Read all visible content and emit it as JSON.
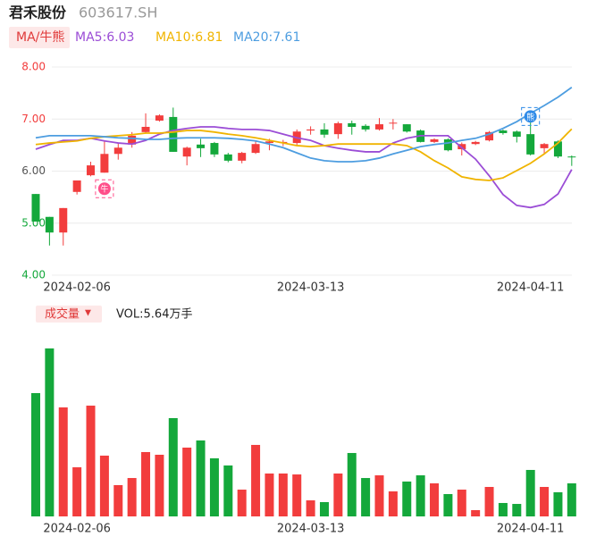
{
  "header": {
    "title": "君禾股份",
    "code": "603617.SH"
  },
  "chart_data": {
    "type": "candlestick",
    "indicator_button": "MA/牛熊",
    "categories": [
      null,
      null,
      null,
      "2024-02-06",
      null,
      null,
      null,
      null,
      null,
      null,
      null,
      null,
      null,
      null,
      null,
      null,
      null,
      null,
      null,
      null,
      "2024-03-13",
      null,
      null,
      null,
      null,
      null,
      null,
      null,
      null,
      null,
      null,
      null,
      null,
      null,
      null,
      null,
      "2024-04-11",
      null,
      null,
      null
    ],
    "up_color": "#f23d3d",
    "down_color": "#14a83b",
    "open": [
      5.56,
      5.12,
      4.82,
      5.6,
      5.92,
      5.97,
      6.33,
      6.51,
      6.75,
      6.97,
      7.04,
      6.28,
      6.51,
      6.54,
      6.32,
      6.2,
      6.35,
      6.54,
      6.54,
      6.54,
      6.78,
      6.8,
      6.71,
      6.92,
      6.87,
      6.8,
      6.92,
      6.9,
      6.78,
      6.56,
      6.61,
      6.42,
      6.52,
      6.59,
      6.78,
      6.76,
      6.71,
      6.44,
      6.57,
      6.28
    ],
    "high": [
      5.56,
      5.12,
      5.29,
      5.82,
      6.18,
      6.58,
      6.55,
      6.75,
      7.11,
      7.09,
      7.22,
      6.47,
      6.62,
      6.56,
      6.35,
      6.37,
      6.59,
      6.62,
      6.6,
      6.8,
      6.86,
      6.92,
      6.95,
      6.97,
      6.9,
      7.02,
      7.0,
      6.9,
      6.8,
      6.63,
      6.63,
      6.55,
      6.58,
      6.77,
      6.8,
      6.78,
      7.05,
      6.54,
      6.59,
      6.3
    ],
    "low": [
      5.03,
      4.57,
      4.57,
      5.55,
      5.9,
      5.97,
      6.22,
      6.45,
      6.72,
      6.95,
      6.37,
      6.11,
      6.27,
      6.27,
      6.17,
      6.15,
      6.33,
      6.4,
      6.48,
      6.5,
      6.7,
      6.64,
      6.62,
      6.7,
      6.76,
      6.78,
      6.8,
      6.74,
      6.55,
      6.54,
      6.38,
      6.3,
      6.5,
      6.57,
      6.7,
      6.55,
      6.3,
      6.33,
      6.25,
      6.1
    ],
    "close": [
      5.03,
      4.82,
      5.29,
      5.82,
      6.11,
      6.33,
      6.45,
      6.68,
      6.85,
      7.07,
      6.37,
      6.45,
      6.44,
      6.32,
      6.2,
      6.35,
      6.52,
      6.57,
      6.56,
      6.76,
      6.8,
      6.7,
      6.92,
      6.85,
      6.8,
      6.9,
      6.93,
      6.76,
      6.56,
      6.61,
      6.4,
      6.52,
      6.56,
      6.75,
      6.73,
      6.66,
      6.32,
      6.52,
      6.28,
      6.27
    ],
    "series": [
      {
        "name": "MA5",
        "label": "MA5:6.03",
        "color": "#9b4dd6",
        "values": [
          6.42,
          6.51,
          6.59,
          6.59,
          6.63,
          6.58,
          6.54,
          6.52,
          6.59,
          6.71,
          6.78,
          6.82,
          6.85,
          6.85,
          6.82,
          6.8,
          6.8,
          6.78,
          6.71,
          6.64,
          6.59,
          6.49,
          6.44,
          6.4,
          6.37,
          6.37,
          6.54,
          6.63,
          6.68,
          6.68,
          6.68,
          6.45,
          6.23,
          5.91,
          5.55,
          5.34,
          5.3,
          5.36,
          5.56,
          6.03
        ]
      },
      {
        "name": "MA10",
        "label": "MA10:6.81",
        "color": "#f0b400",
        "values": [
          6.51,
          6.54,
          6.56,
          6.58,
          6.63,
          6.66,
          6.68,
          6.7,
          6.73,
          6.73,
          6.75,
          6.78,
          6.78,
          6.75,
          6.71,
          6.68,
          6.64,
          6.59,
          6.54,
          6.49,
          6.47,
          6.49,
          6.52,
          6.52,
          6.52,
          6.52,
          6.52,
          6.49,
          6.37,
          6.2,
          6.06,
          5.89,
          5.84,
          5.82,
          5.87,
          6.01,
          6.15,
          6.33,
          6.54,
          6.81
        ]
      },
      {
        "name": "MA20",
        "label": "MA20:7.61",
        "color": "#4d9de0",
        "values": [
          6.64,
          6.68,
          6.68,
          6.68,
          6.68,
          6.66,
          6.64,
          6.63,
          6.61,
          6.61,
          6.63,
          6.64,
          6.64,
          6.64,
          6.63,
          6.61,
          6.58,
          6.52,
          6.45,
          6.35,
          6.25,
          6.2,
          6.18,
          6.18,
          6.2,
          6.25,
          6.33,
          6.4,
          6.47,
          6.51,
          6.54,
          6.59,
          6.63,
          6.71,
          6.82,
          6.95,
          7.11,
          7.26,
          7.42,
          7.61
        ]
      }
    ],
    "ylim": [
      4,
      8
    ],
    "yticks": [
      {
        "value": 8,
        "label": "8.00",
        "color": "#f23d3d"
      },
      {
        "value": 7,
        "label": "7.00",
        "color": "#f23d3d"
      },
      {
        "value": 6,
        "label": "6.00",
        "color": "#555555"
      },
      {
        "value": 5,
        "label": "5.00",
        "color": "#14a83b"
      },
      {
        "value": 4,
        "label": "4.00",
        "color": "#14a83b"
      }
    ],
    "grid": true,
    "annotations": [
      {
        "text": "牛",
        "index": 5,
        "color": "#ff4f8a"
      },
      {
        "text": "熊",
        "index": 36,
        "color": "#2f8be8"
      }
    ],
    "volume": {
      "button": "成交量",
      "arrow": "▼",
      "label": "VOL:5.64万手",
      "values": [
        21.04,
        28.66,
        18.6,
        8.38,
        18.9,
        10.37,
        5.34,
        6.55,
        10.98,
        10.52,
        16.77,
        11.74,
        12.96,
        9.91,
        8.69,
        4.57,
        12.2,
        7.32,
        7.32,
        7.16,
        2.74,
        2.44,
        7.32,
        10.82,
        6.55,
        7.01,
        4.27,
        5.95,
        7.01,
        5.64,
        3.81,
        4.57,
        1.07,
        5.03,
        2.29,
        2.13,
        7.93,
        5.03,
        4.12,
        5.64
      ]
    }
  }
}
